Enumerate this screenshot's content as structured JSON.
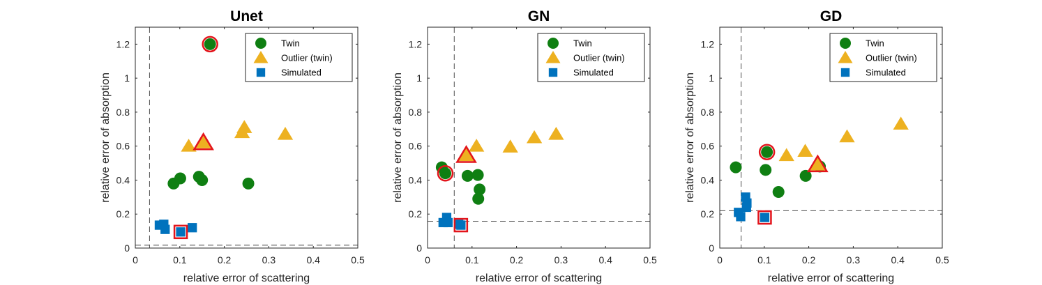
{
  "colors": {
    "twin": "#0f7f12",
    "outlier": "#edb120",
    "simulated": "#0072bd",
    "highlight": "#e3141b",
    "axis": "#262626",
    "threshold": "#4d4d4d"
  },
  "chart_data": [
    {
      "type": "scatter",
      "title": "Unet",
      "xlabel": "relative error of scattering",
      "ylabel": "relative error of absorption",
      "xlim": [
        0,
        0.5
      ],
      "ylim": [
        0,
        1.3
      ],
      "xticks": [
        "0",
        "0.1",
        "0.2",
        "0.3",
        "0.4",
        "0.5"
      ],
      "yticks": [
        "0",
        "0.2",
        "0.4",
        "0.6",
        "0.8",
        "1",
        "1.2"
      ],
      "legend": {
        "position": "top-right",
        "entries": [
          "Twin",
          "Outlier (twin)",
          "Simulated"
        ]
      },
      "thresholds": {
        "x": 0.032,
        "y": 0.017
      },
      "series": [
        {
          "name": "Twin",
          "marker": "circle",
          "points": [
            [
              0.086,
              0.38
            ],
            [
              0.101,
              0.41
            ],
            [
              0.143,
              0.42
            ],
            [
              0.15,
              0.4
            ],
            [
              0.254,
              0.38
            ],
            [
              0.168,
              1.2
            ]
          ]
        },
        {
          "name": "Outlier (twin)",
          "marker": "triangle",
          "points": [
            [
              0.12,
              0.6
            ],
            [
              0.153,
              0.62
            ],
            [
              0.24,
              0.68
            ],
            [
              0.245,
              0.71
            ],
            [
              0.337,
              0.67
            ]
          ]
        },
        {
          "name": "Simulated",
          "marker": "square",
          "points": [
            [
              0.054,
              0.135
            ],
            [
              0.064,
              0.14
            ],
            [
              0.067,
              0.11
            ],
            [
              0.102,
              0.095
            ],
            [
              0.128,
              0.12
            ]
          ]
        }
      ],
      "highlighted": [
        {
          "series": "Twin",
          "point": [
            0.168,
            1.2
          ]
        },
        {
          "series": "Outlier (twin)",
          "point": [
            0.153,
            0.62
          ]
        },
        {
          "series": "Simulated",
          "point": [
            0.102,
            0.095
          ]
        }
      ]
    },
    {
      "type": "scatter",
      "title": "GN",
      "xlabel": "relative error of scattering",
      "ylabel": "relative error of absorption",
      "xlim": [
        0,
        0.5
      ],
      "ylim": [
        0,
        1.3
      ],
      "xticks": [
        "0",
        "0.1",
        "0.2",
        "0.3",
        "0.4",
        "0.5"
      ],
      "yticks": [
        "0",
        "0.2",
        "0.4",
        "0.6",
        "0.8",
        "1",
        "1.2"
      ],
      "legend": {
        "position": "top-right",
        "entries": [
          "Twin",
          "Outlier (twin)",
          "Simulated"
        ]
      },
      "thresholds": {
        "x": 0.06,
        "y": 0.158
      },
      "series": [
        {
          "name": "Twin",
          "marker": "circle",
          "points": [
            [
              0.032,
              0.475
            ],
            [
              0.04,
              0.44
            ],
            [
              0.09,
              0.425
            ],
            [
              0.113,
              0.43
            ],
            [
              0.117,
              0.345
            ],
            [
              0.114,
              0.29
            ]
          ]
        },
        {
          "name": "Outlier (twin)",
          "marker": "triangle",
          "points": [
            [
              0.087,
              0.545
            ],
            [
              0.11,
              0.6
            ],
            [
              0.186,
              0.595
            ],
            [
              0.24,
              0.65
            ],
            [
              0.289,
              0.67
            ]
          ]
        },
        {
          "name": "Simulated",
          "marker": "square",
          "points": [
            [
              0.035,
              0.15
            ],
            [
              0.043,
              0.18
            ],
            [
              0.046,
              0.15
            ],
            [
              0.07,
              0.14
            ],
            [
              0.075,
              0.135
            ]
          ]
        }
      ],
      "highlighted": [
        {
          "series": "Twin",
          "point": [
            0.04,
            0.44
          ]
        },
        {
          "series": "Outlier (twin)",
          "point": [
            0.087,
            0.545
          ]
        },
        {
          "series": "Simulated",
          "point": [
            0.075,
            0.135
          ]
        }
      ]
    },
    {
      "type": "scatter",
      "title": "GD",
      "xlabel": "relative error of scattering",
      "ylabel": "relative error of absorption",
      "xlim": [
        0,
        0.5
      ],
      "ylim": [
        0,
        1.3
      ],
      "xticks": [
        "0",
        "0.1",
        "0.2",
        "0.3",
        "0.4",
        "0.5"
      ],
      "yticks": [
        "0",
        "0.2",
        "0.4",
        "0.6",
        "0.8",
        "1",
        "1.2"
      ],
      "legend": {
        "position": "top-right",
        "entries": [
          "Twin",
          "Outlier (twin)",
          "Simulated"
        ]
      },
      "thresholds": {
        "x": 0.048,
        "y": 0.22
      },
      "series": [
        {
          "name": "Twin",
          "marker": "circle",
          "points": [
            [
              0.036,
              0.475
            ],
            [
              0.103,
              0.46
            ],
            [
              0.106,
              0.565
            ],
            [
              0.132,
              0.33
            ],
            [
              0.193,
              0.425
            ],
            [
              0.225,
              0.48
            ]
          ]
        },
        {
          "name": "Outlier (twin)",
          "marker": "triangle",
          "points": [
            [
              0.15,
              0.545
            ],
            [
              0.192,
              0.57
            ],
            [
              0.22,
              0.49
            ],
            [
              0.286,
              0.655
            ],
            [
              0.407,
              0.73
            ]
          ]
        },
        {
          "name": "Simulated",
          "marker": "square",
          "points": [
            [
              0.042,
              0.21
            ],
            [
              0.047,
              0.185
            ],
            [
              0.058,
              0.3
            ],
            [
              0.061,
              0.265
            ],
            [
              0.06,
              0.24
            ],
            [
              0.101,
              0.18
            ]
          ]
        }
      ],
      "highlighted": [
        {
          "series": "Twin",
          "point": [
            0.106,
            0.565
          ]
        },
        {
          "series": "Outlier (twin)",
          "point": [
            0.22,
            0.49
          ]
        },
        {
          "series": "Simulated",
          "point": [
            0.101,
            0.18
          ]
        }
      ]
    }
  ]
}
